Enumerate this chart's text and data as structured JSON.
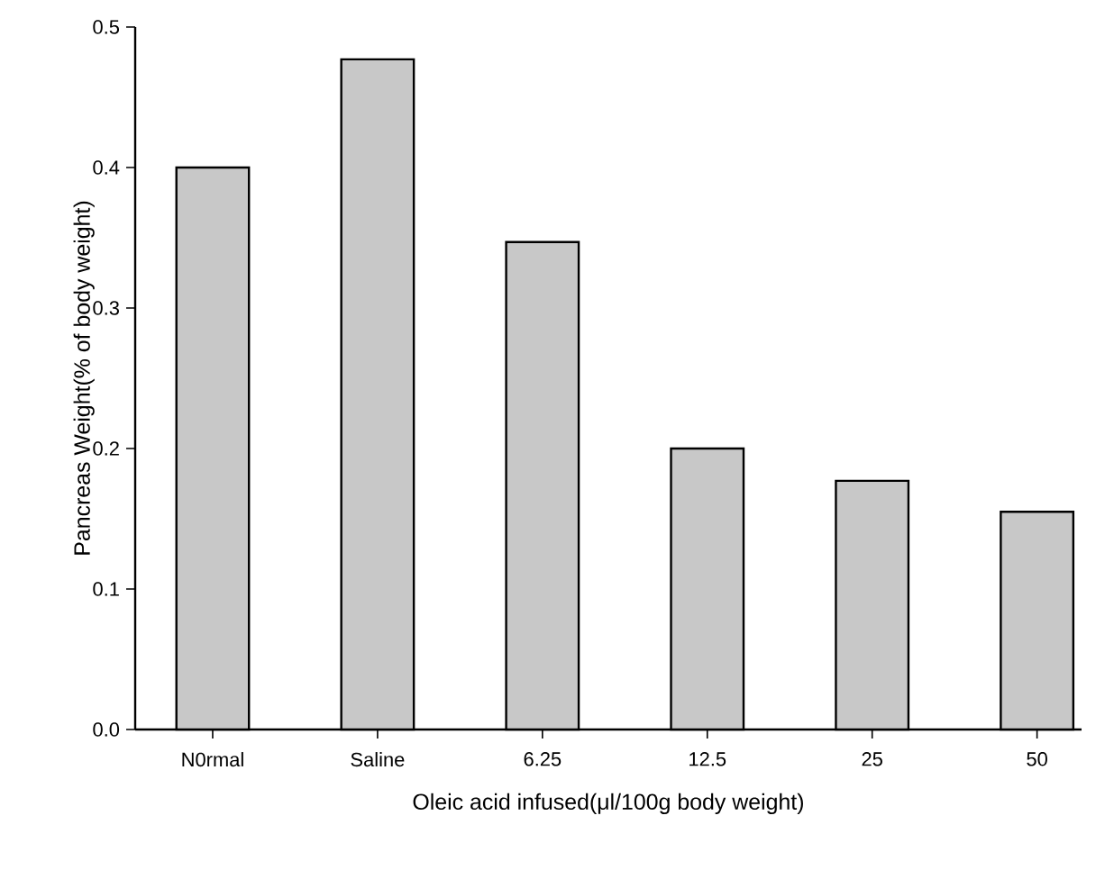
{
  "chart_data": {
    "type": "bar",
    "xlabel": "Oleic acid infused(μl/100g body weight)",
    "ylabel": "Pancreas Weight(% of body weight)",
    "categories": [
      "N0rmal",
      "Saline",
      "6.25",
      "12.5",
      "25",
      "50"
    ],
    "values": [
      0.4,
      0.477,
      0.347,
      0.2,
      0.177,
      0.155
    ],
    "color": "#c8c8c8",
    "ylim": [
      0,
      0.5
    ],
    "yticks": [
      {
        "value": 0,
        "label": "0.0"
      },
      0.1,
      0.2,
      0.3,
      0.4,
      0.5
    ]
  }
}
